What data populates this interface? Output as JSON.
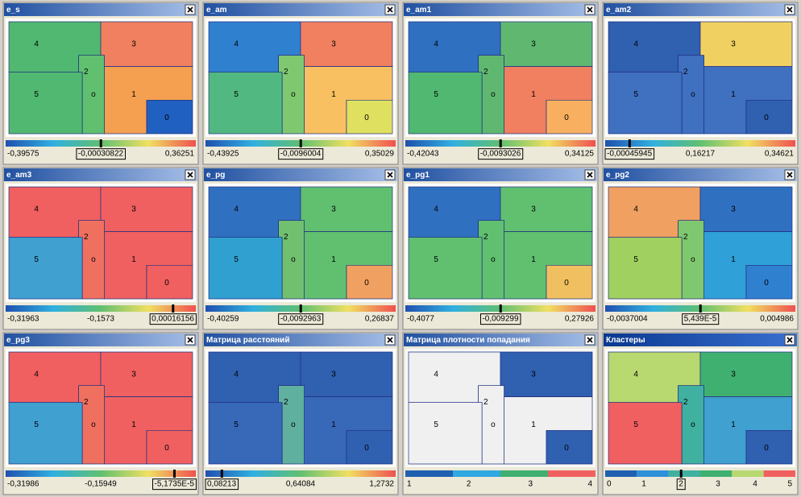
{
  "cluster_labels": [
    "4",
    "3",
    "2",
    "o",
    "5",
    "1",
    "0"
  ],
  "panels": [
    {
      "title": "e_s",
      "scale_labels": [
        "-0,39575",
        "-0,00030822",
        "0,36251"
      ],
      "colors": [
        "#2060c0",
        "#f4a050",
        "#60c070",
        "#f08060",
        "#50b870",
        "#50b870"
      ]
    },
    {
      "title": "e_am",
      "scale_labels": [
        "-0,43925",
        "-0,0096004",
        "0,35029"
      ],
      "colors": [
        "#e0e060",
        "#f8c060",
        "#80c870",
        "#f08060",
        "#3080d0",
        "#50b880"
      ]
    },
    {
      "title": "e_am1",
      "scale_labels": [
        "-0,42043",
        "-0,0093026",
        "0,34125"
      ],
      "colors": [
        "#f8b060",
        "#f08060",
        "#60b870",
        "#60b870",
        "#3070c0",
        "#50b870"
      ]
    },
    {
      "title": "e_am2",
      "scale_labels": [
        "-0,00045945",
        "0,16217",
        "0,34621"
      ],
      "colors": [
        "#3060b0",
        "#4070c0",
        "#4070c0",
        "#f0d060",
        "#3060b0",
        "#4070c0"
      ]
    },
    {
      "title": "e_am3",
      "scale_labels": [
        "-0,31963",
        "-0,1573",
        "0,00016156"
      ],
      "colors": [
        "#f06060",
        "#f06060",
        "#f07060",
        "#f06060",
        "#f06060",
        "#40a0d0"
      ]
    },
    {
      "title": "e_pg",
      "scale_labels": [
        "-0,40259",
        "-0,0092963",
        "0,26837"
      ],
      "colors": [
        "#f0a060",
        "#60c070",
        "#70c070",
        "#60c070",
        "#3070c0",
        "#30a0d0"
      ]
    },
    {
      "title": "e_pg1",
      "scale_labels": [
        "-0,4077",
        "-0,009299",
        "0,27926"
      ],
      "colors": [
        "#f0c060",
        "#60c070",
        "#60c070",
        "#60c070",
        "#3070c0",
        "#60c070"
      ]
    },
    {
      "title": "e_pg2",
      "scale_labels": [
        "-0,0037004",
        "5,439E-5",
        "0,004986"
      ],
      "colors": [
        "#3080d0",
        "#30a0d8",
        "#80c870",
        "#3070c0",
        "#f0a060",
        "#a0d060"
      ]
    },
    {
      "title": "e_pg3",
      "scale_labels": [
        "-0,31986",
        "-0,15949",
        "-5,1735E-5"
      ],
      "colors": [
        "#f06060",
        "#f06060",
        "#f07060",
        "#f06060",
        "#f06060",
        "#40a0d0"
      ]
    },
    {
      "title": "Матрица расстояний",
      "scale_labels": [
        "0,08213",
        "0,64084",
        "1,2732"
      ],
      "colors": [
        "#3060b0",
        "#3868b8",
        "#60b0a0",
        "#3060b0",
        "#3060b0",
        "#3868b8"
      ]
    },
    {
      "title": "Матрица плотности попадания",
      "scale_labels": [
        "1",
        "2",
        "3",
        "4"
      ],
      "colors": [
        "#3060b0",
        "#f0f0f0",
        "#f0f0f0",
        "#3060b0",
        "#f0f0f0",
        "#f0f0f0"
      ]
    },
    {
      "title": "Кластеры",
      "scale_labels": [
        "0",
        "1",
        "2",
        "3",
        "4",
        "5"
      ],
      "colors": [
        "#3060b0",
        "#40a0d0",
        "#40b0a0",
        "#40b070",
        "#b8d870",
        "#f06060"
      ]
    }
  ]
}
